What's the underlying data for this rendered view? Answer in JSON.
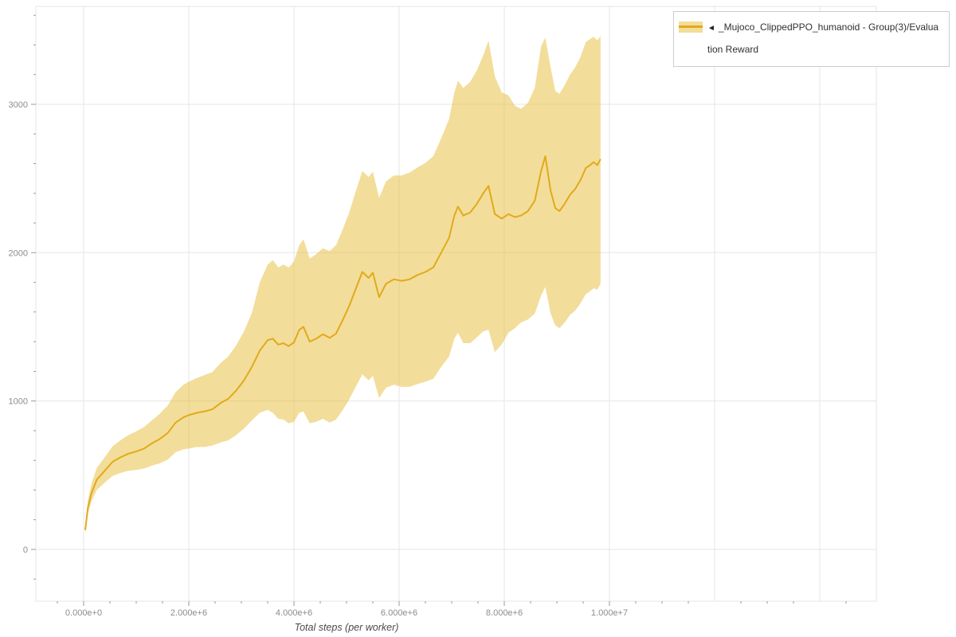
{
  "legend": {
    "toggle_icon": "◄",
    "label": "_Mujoco_ClippedPPO_humanoid - Group(3)/Evaluation Reward",
    "marker_line_color": "#e1aa1a",
    "marker_band_color": "#f3dd9a"
  },
  "chart_data": {
    "type": "line",
    "title": "",
    "xlabel": "Total steps (per worker)",
    "ylabel": "",
    "grid": true,
    "legend_position": "top-right",
    "line_color": "#e1aa1a",
    "band_color": "#e8bb35",
    "band_opacity": 0.5,
    "grid_color": "#e6e6e6",
    "axis_tick_color": "#9a9a9a",
    "xlim": [
      -909091,
      15075758
    ],
    "ylim": [
      -349,
      3660
    ],
    "x_tick_values": [
      0,
      2000000,
      4000000,
      6000000,
      8000000,
      10000000
    ],
    "x_tick_labels": [
      "0.000e+0",
      "2.000e+6",
      "4.000e+6",
      "6.000e+6",
      "8.000e+6",
      "1.000e+7"
    ],
    "y_tick_values": [
      0,
      1000,
      2000,
      3000
    ],
    "y_tick_labels": [
      "0",
      "1000",
      "2000",
      "3000"
    ],
    "x_grid": [
      0,
      2000000,
      4000000,
      6000000,
      8000000,
      10000000,
      12000000,
      14000000
    ],
    "y_grid": [
      0,
      1000,
      2000,
      3000
    ],
    "series": [
      {
        "name": "_Mujoco_ClippedPPO_humanoid - Group(3)/Evaluation Reward",
        "x": [
          30000,
          80000,
          150000,
          250000,
          400000,
          550000,
          700000,
          850000,
          1000000,
          1150000,
          1300000,
          1450000,
          1600000,
          1750000,
          1900000,
          2000000,
          2150000,
          2300000,
          2450000,
          2600000,
          2750000,
          2900000,
          3050000,
          3200000,
          3350000,
          3500000,
          3600000,
          3700000,
          3800000,
          3900000,
          4000000,
          4100000,
          4180000,
          4300000,
          4420000,
          4550000,
          4680000,
          4800000,
          4920000,
          5050000,
          5180000,
          5300000,
          5420000,
          5500000,
          5620000,
          5750000,
          5900000,
          6050000,
          6200000,
          6350000,
          6500000,
          6650000,
          6800000,
          6950000,
          7050000,
          7120000,
          7220000,
          7350000,
          7480000,
          7600000,
          7700000,
          7820000,
          7950000,
          8080000,
          8200000,
          8320000,
          8450000,
          8580000,
          8700000,
          8780000,
          8880000,
          8970000,
          9050000,
          9150000,
          9250000,
          9350000,
          9450000,
          9550000,
          9630000,
          9700000,
          9770000,
          9830000
        ],
        "mean": [
          130,
          280,
          380,
          470,
          530,
          590,
          620,
          645,
          660,
          680,
          715,
          745,
          785,
          855,
          890,
          905,
          920,
          930,
          945,
          985,
          1015,
          1070,
          1140,
          1230,
          1340,
          1410,
          1420,
          1380,
          1390,
          1370,
          1395,
          1480,
          1500,
          1400,
          1420,
          1450,
          1425,
          1455,
          1540,
          1640,
          1760,
          1870,
          1830,
          1865,
          1700,
          1790,
          1820,
          1810,
          1820,
          1850,
          1870,
          1900,
          2000,
          2100,
          2250,
          2310,
          2250,
          2270,
          2330,
          2400,
          2450,
          2260,
          2230,
          2260,
          2240,
          2250,
          2280,
          2350,
          2550,
          2650,
          2420,
          2300,
          2280,
          2330,
          2390,
          2430,
          2490,
          2570,
          2590,
          2610,
          2590,
          2630
        ],
        "lower": [
          115,
          240,
          325,
          400,
          450,
          495,
          515,
          530,
          535,
          545,
          565,
          580,
          605,
          655,
          675,
          680,
          690,
          690,
          700,
          720,
          735,
          770,
          815,
          870,
          920,
          940,
          920,
          880,
          875,
          850,
          860,
          920,
          930,
          850,
          860,
          880,
          855,
          875,
          935,
          1010,
          1100,
          1180,
          1140,
          1170,
          1020,
          1090,
          1110,
          1095,
          1095,
          1115,
          1130,
          1150,
          1230,
          1300,
          1420,
          1460,
          1390,
          1390,
          1430,
          1470,
          1480,
          1330,
          1380,
          1460,
          1490,
          1530,
          1550,
          1590,
          1710,
          1770,
          1590,
          1510,
          1490,
          1530,
          1580,
          1610,
          1660,
          1720,
          1740,
          1760,
          1750,
          1790
        ],
        "upper": [
          150,
          330,
          445,
          550,
          620,
          695,
          735,
          770,
          795,
          825,
          870,
          915,
          970,
          1060,
          1110,
          1130,
          1155,
          1175,
          1195,
          1255,
          1300,
          1375,
          1470,
          1595,
          1800,
          1920,
          1950,
          1900,
          1920,
          1900,
          1940,
          2050,
          2090,
          1960,
          1990,
          2030,
          2010,
          2050,
          2150,
          2270,
          2420,
          2550,
          2510,
          2545,
          2370,
          2480,
          2520,
          2520,
          2540,
          2575,
          2605,
          2650,
          2770,
          2900,
          3080,
          3160,
          3110,
          3150,
          3230,
          3330,
          3430,
          3190,
          3080,
          3060,
          2990,
          2970,
          3010,
          3110,
          3390,
          3450,
          3250,
          3090,
          3070,
          3130,
          3200,
          3250,
          3320,
          3420,
          3440,
          3455,
          3430,
          3460
        ]
      }
    ]
  }
}
